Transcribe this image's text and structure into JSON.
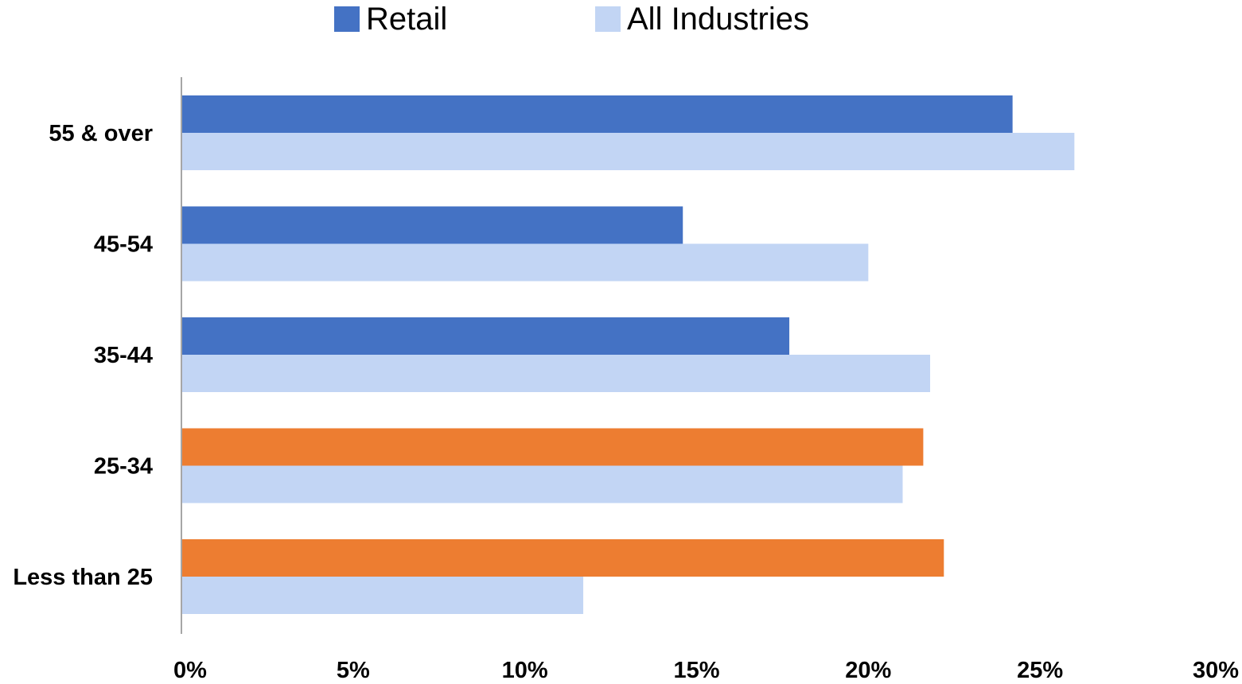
{
  "chart_data": {
    "type": "bar",
    "orientation": "horizontal",
    "title": "",
    "xlabel": "",
    "ylabel": "",
    "categories": [
      "55 & over",
      "45-54",
      "35-44",
      "25-34",
      "Less than 25"
    ],
    "series": [
      {
        "name": "Retail",
        "color": "#4472C4",
        "values": [
          24.2,
          14.6,
          17.7,
          21.6,
          22.2
        ],
        "point_colors": [
          "#4472C4",
          "#4472C4",
          "#4472C4",
          "#ED7D31",
          "#ED7D31"
        ]
      },
      {
        "name": "All Industries",
        "color": "#C2D5F4",
        "values": [
          26.0,
          20.0,
          21.8,
          21.0,
          11.7
        ]
      }
    ],
    "xlim": [
      0,
      30
    ],
    "x_ticks": [
      "0%",
      "5%",
      "10%",
      "15%",
      "20%",
      "25%",
      "30%"
    ],
    "grid": false,
    "legend_position": "top"
  }
}
